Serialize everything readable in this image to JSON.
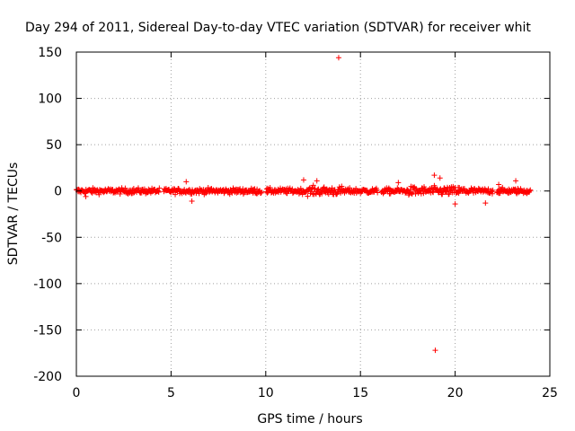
{
  "chart_data": {
    "type": "scatter",
    "title": "Day 294 of 2011, Sidereal Day-to-day VTEC variation (SDTVAR) for receiver whit",
    "xlabel": "GPS time / hours",
    "ylabel": "SDTVAR / TECUs",
    "xlim": [
      0,
      25
    ],
    "ylim": [
      -200,
      150
    ],
    "xticks": [
      "0",
      "5",
      "10",
      "15",
      "20",
      "25"
    ],
    "yticks": [
      "150",
      "100",
      "50",
      "0",
      "-50",
      "-100",
      "-150",
      "-200"
    ],
    "grid": true,
    "marker": "+",
    "series": [
      {
        "color": "#ff0000",
        "x_range": [
          0,
          24
        ],
        "typical_spread": 3,
        "gaps": [
          [
            4.4,
            4.6
          ],
          [
            9.8,
            10.0
          ],
          [
            15.9,
            16.1
          ],
          [
            22.0,
            22.2
          ]
        ],
        "outliers": [
          {
            "x": 13.85,
            "y": 144
          },
          {
            "x": 18.95,
            "y": -172
          },
          {
            "x": 18.9,
            "y": 17
          },
          {
            "x": 23.2,
            "y": 11
          },
          {
            "x": 12.0,
            "y": 12
          },
          {
            "x": 12.7,
            "y": 11
          },
          {
            "x": 5.8,
            "y": 10
          },
          {
            "x": 6.1,
            "y": -11
          },
          {
            "x": 0.5,
            "y": -6
          },
          {
            "x": 17.0,
            "y": 9
          },
          {
            "x": 19.2,
            "y": 14
          },
          {
            "x": 20.0,
            "y": -14
          },
          {
            "x": 21.6,
            "y": -13
          },
          {
            "x": 22.3,
            "y": 7
          }
        ]
      }
    ]
  }
}
